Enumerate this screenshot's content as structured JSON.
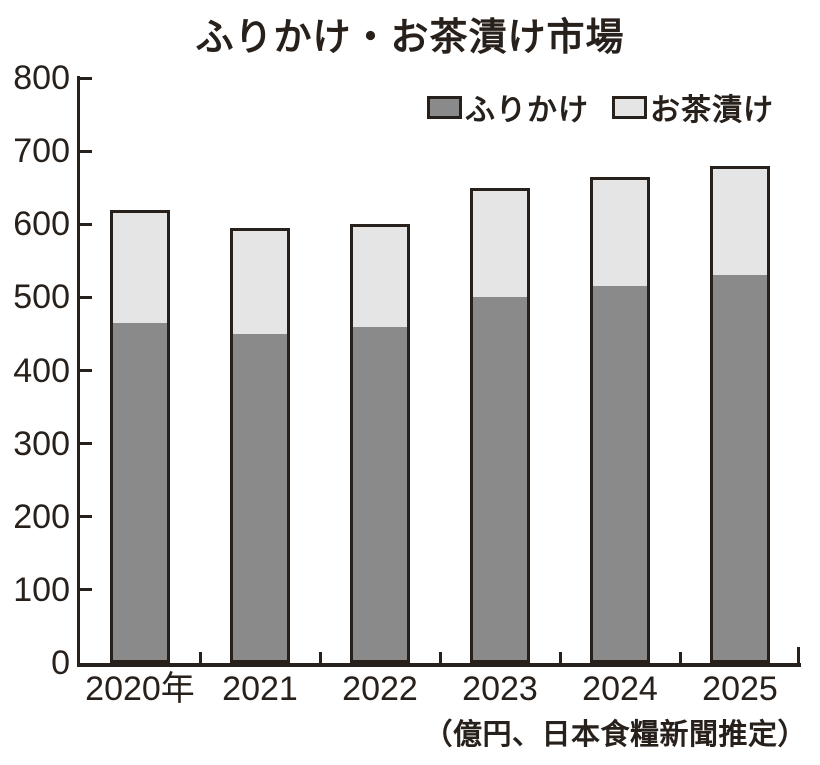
{
  "title": "ふりかけ・お茶漬け市場",
  "legend": [
    {
      "label": "ふりかけ",
      "color": "#8a8a8a"
    },
    {
      "label": "お茶漬け",
      "color": "#e5e5e6"
    }
  ],
  "footer_note": "（億円、日本食糧新聞推定）",
  "colors": {
    "ink": "#27201b",
    "furikake_fill": "#8a8a8a",
    "ochazuke_fill": "#e5e5e6",
    "background": "#ffffff"
  },
  "chart_data": {
    "type": "bar",
    "stacked": true,
    "title": "ふりかけ・お茶漬け市場",
    "categories": [
      "2020年",
      "2021",
      "2022",
      "2023",
      "2024",
      "2025"
    ],
    "series": [
      {
        "name": "ふりかけ",
        "color": "#8a8a8a",
        "values": [
          465,
          450,
          460,
          500,
          515,
          530
        ]
      },
      {
        "name": "お茶漬け",
        "color": "#e5e5e6",
        "values": [
          155,
          145,
          140,
          150,
          150,
          150
        ]
      }
    ],
    "totals": [
      620,
      595,
      600,
      650,
      665,
      680
    ],
    "unit": "億円",
    "source_note": "（億円、日本食糧新聞推定）",
    "xlabel": "",
    "ylabel": "",
    "ylim": [
      0,
      800
    ],
    "yticks": [
      0,
      100,
      200,
      300,
      400,
      500,
      600,
      700,
      800
    ],
    "grid": false,
    "legend_position": "top-right"
  }
}
